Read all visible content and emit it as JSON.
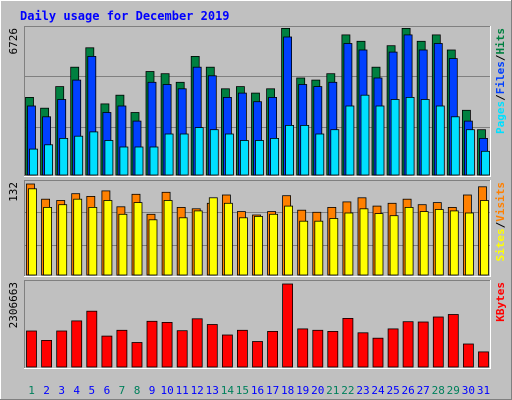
{
  "chart_data": {
    "type": "bar",
    "title": "Daily usage for December 2019",
    "categories": [
      "1",
      "2",
      "3",
      "4",
      "5",
      "6",
      "7",
      "8",
      "9",
      "10",
      "11",
      "12",
      "13",
      "14",
      "15",
      "16",
      "17",
      "18",
      "19",
      "20",
      "21",
      "22",
      "23",
      "24",
      "25",
      "26",
      "27",
      "28",
      "29",
      "30",
      "31"
    ],
    "weekend_days": [
      "1",
      "7",
      "8",
      "14",
      "15",
      "21",
      "22",
      "28",
      "29"
    ],
    "panels": [
      {
        "id": "hits_panel",
        "ymax": 6726,
        "ymax_label": "6726",
        "axis_label_parts": [
          "Pages",
          "/",
          "Files",
          "/",
          "Hits"
        ],
        "grid": true,
        "series": [
          {
            "name": "Hits",
            "color": "#008040",
            "values": [
              3600,
              3100,
              4100,
              5000,
              5900,
              3300,
              3700,
              2900,
              4800,
              4700,
              4300,
              5500,
              5000,
              4000,
              4100,
              3800,
              4000,
              6800,
              4500,
              4400,
              4700,
              6500,
              6200,
              5000,
              6000,
              6800,
              6200,
              6500,
              5800,
              3000,
              2100
            ]
          },
          {
            "name": "Files",
            "color": "#0040ff",
            "values": [
              3200,
              2700,
              3500,
              4400,
              5500,
              2900,
              3200,
              2500,
              4300,
              4200,
              4000,
              5000,
              4600,
              3600,
              3800,
              3400,
              3600,
              6400,
              4200,
              4100,
              4300,
              6100,
              5800,
              4500,
              5700,
              6500,
              5800,
              6100,
              5400,
              2500,
              1700
            ]
          },
          {
            "name": "Pages",
            "color": "#00e0ff",
            "values": [
              1200,
              1400,
              1700,
              1800,
              2000,
              1600,
              1300,
              1300,
              1300,
              1900,
              1900,
              2200,
              2100,
              1900,
              1600,
              1600,
              1700,
              2300,
              2300,
              1900,
              2100,
              3200,
              3700,
              3200,
              3500,
              3600,
              3500,
              3200,
              2700,
              2100,
              1100
            ]
          }
        ]
      },
      {
        "id": "visits_panel",
        "ymax": 132,
        "ymax_label": "132",
        "axis_label_parts": [
          "Sites",
          "/",
          "Visits"
        ],
        "grid": true,
        "series": [
          {
            "name": "Visits",
            "color": "#ff8000",
            "values": [
              132,
              110,
              108,
              118,
              114,
              122,
              99,
              117,
              88,
              120,
              98,
              96,
              104,
              116,
              92,
              87,
              92,
              115,
              94,
              91,
              98,
              106,
              112,
              100,
              104,
              110,
              102,
              105,
              98,
              116,
              128
            ]
          },
          {
            "name": "Sites",
            "color": "#ffff00",
            "values": [
              125,
              98,
              102,
              110,
              98,
              108,
              88,
              105,
              80,
              108,
              83,
              93,
              112,
              104,
              83,
              85,
              88,
              100,
              78,
              78,
              82,
              90,
              96,
              89,
              86,
              98,
              92,
              95,
              93,
              90,
              108
            ]
          }
        ]
      },
      {
        "id": "kbytes_panel",
        "ymax": 2306663,
        "ymax_label": "2306663",
        "axis_label_parts": [
          "KBytes"
        ],
        "grid": false,
        "series": [
          {
            "name": "KBytes",
            "color": "#ff0000",
            "values": [
              1000000,
              740000,
              1000000,
              1280000,
              1550000,
              860000,
              1020000,
              680000,
              1270000,
              1240000,
              1010000,
              1340000,
              1180000,
              890000,
              1020000,
              710000,
              990000,
              2306663,
              1060000,
              1020000,
              990000,
              1350000,
              950000,
              800000,
              1060000,
              1260000,
              1250000,
              1390000,
              1460000,
              640000,
              420000
            ]
          }
        ]
      }
    ]
  },
  "colors": {
    "background": "#c0c0c0",
    "plot_background": "#c0c0c0",
    "title": "#0000ff",
    "weekday_label": "#0000ff",
    "weekend_label": "#00805c",
    "slash": "#000000",
    "ymax_label": "#000000"
  }
}
